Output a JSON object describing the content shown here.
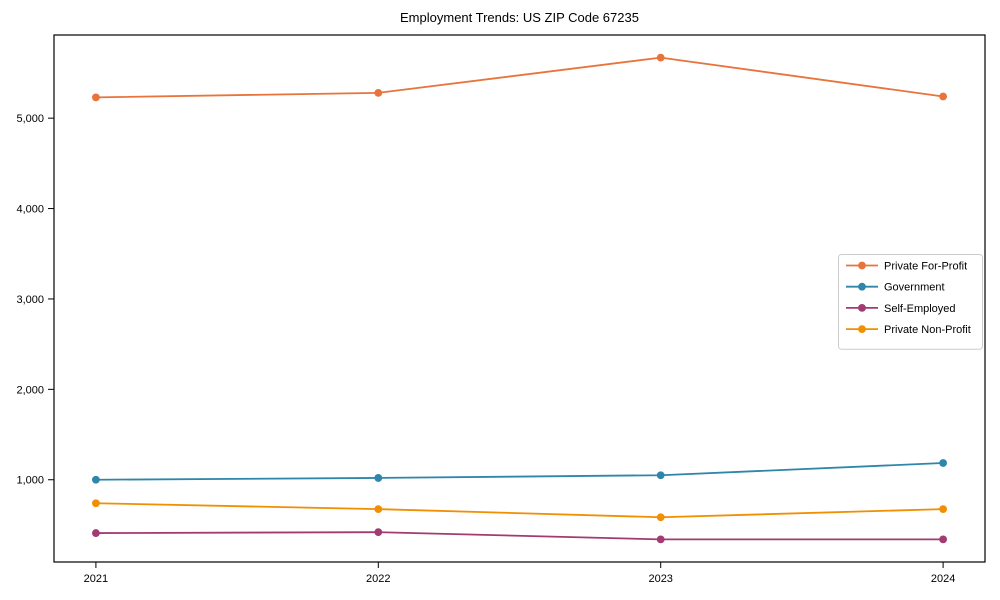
{
  "chart_data": {
    "type": "line",
    "title": "Employment Trends: US ZIP Code 67235",
    "categories": [
      "2021",
      "2022",
      "2023",
      "2024"
    ],
    "series": [
      {
        "name": "Private For-Profit",
        "color": "#E8743B",
        "values": [
          5230,
          5280,
          5670,
          5240
        ]
      },
      {
        "name": "Government",
        "color": "#2E86AB",
        "values": [
          1000,
          1020,
          1050,
          1185
        ]
      },
      {
        "name": "Self-Employed",
        "color": "#A23B72",
        "values": [
          410,
          420,
          340,
          340
        ]
      },
      {
        "name": "Private Non-Profit",
        "color": "#F18F01",
        "values": [
          740,
          675,
          585,
          675
        ]
      }
    ],
    "xlabel": "",
    "ylabel": "",
    "yticks": [
      1000,
      2000,
      3000,
      4000,
      5000
    ],
    "ytick_labels": [
      "1,000",
      "2,000",
      "3,000",
      "4,000",
      "5,000"
    ],
    "ylim": [
      90,
      5920
    ],
    "grid": false,
    "legend_position": "center right",
    "marker": "circle",
    "axis_color": "#000000",
    "legend_border_color": "#cccccc",
    "background_color": "#ffffff"
  }
}
